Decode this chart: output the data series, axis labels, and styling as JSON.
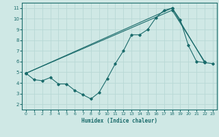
{
  "title": "",
  "xlabel": "Humidex (Indice chaleur)",
  "xlim": [
    -0.5,
    23.5
  ],
  "ylim": [
    1.5,
    11.5
  ],
  "xticks": [
    0,
    1,
    2,
    3,
    4,
    5,
    6,
    7,
    8,
    9,
    10,
    11,
    12,
    13,
    14,
    15,
    16,
    17,
    18,
    19,
    20,
    21,
    22,
    23
  ],
  "yticks": [
    2,
    3,
    4,
    5,
    6,
    7,
    8,
    9,
    10,
    11
  ],
  "bg_color": "#cfe8e5",
  "line_color": "#1a6b6b",
  "grid_color": "#b8d8d5",
  "series1_x": [
    0,
    1,
    2,
    3,
    4,
    5,
    6,
    7,
    8,
    9,
    10,
    11,
    12,
    13,
    14,
    15,
    16,
    17,
    18,
    19,
    20,
    21,
    22,
    23
  ],
  "series1_y": [
    4.9,
    4.3,
    4.2,
    4.5,
    3.9,
    3.9,
    3.3,
    2.9,
    2.5,
    3.1,
    4.4,
    5.8,
    7.0,
    8.5,
    8.5,
    9.0,
    10.1,
    10.8,
    11.0,
    9.9,
    7.5,
    6.0,
    5.9,
    5.8
  ],
  "series2_x": [
    0,
    18,
    22
  ],
  "series2_y": [
    4.9,
    11.0,
    5.9
  ],
  "series3_x": [
    0,
    18,
    22
  ],
  "series3_y": [
    4.9,
    10.8,
    6.0
  ]
}
